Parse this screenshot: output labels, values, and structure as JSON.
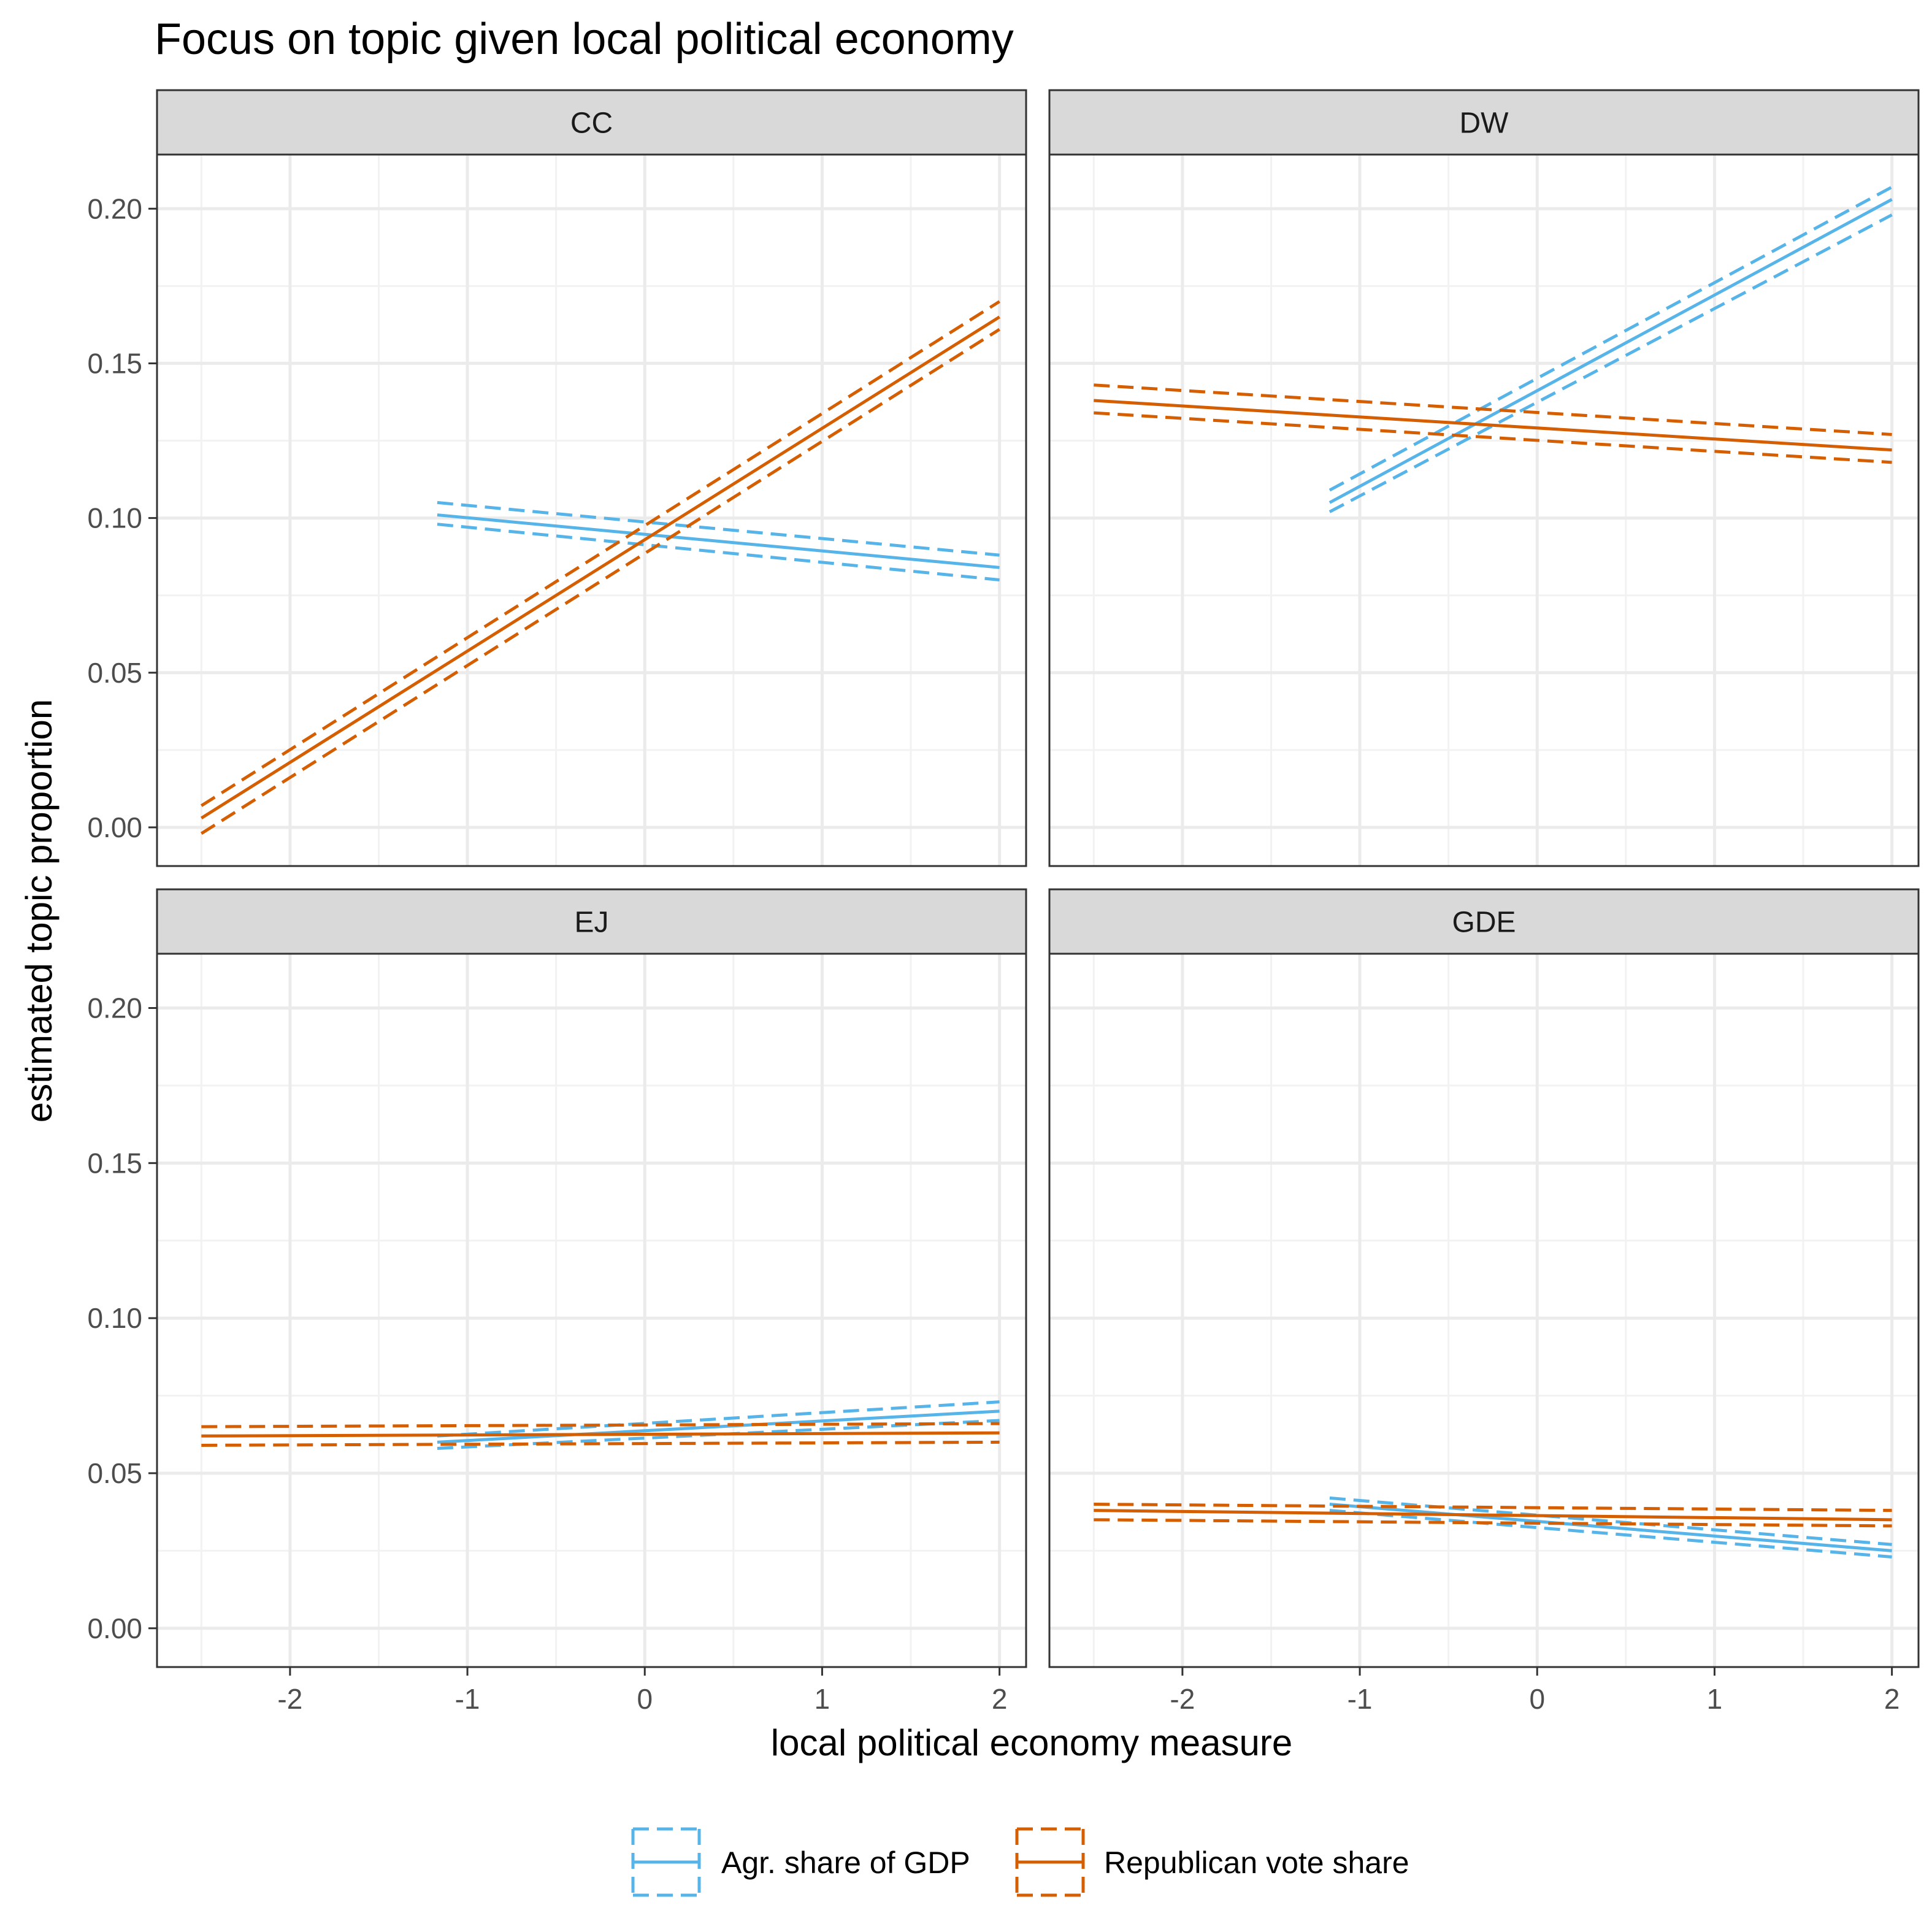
{
  "chart_data": {
    "type": "line",
    "title": "Focus on topic given local political economy",
    "xlabel": "local political economy measure",
    "ylabel": "estimated topic proportion",
    "xlim": [
      -2.75,
      2.15
    ],
    "ylim": [
      -0.0125,
      0.2175
    ],
    "x_ticks": [
      -2,
      -1,
      0,
      1,
      2
    ],
    "x_tick_labels": [
      "-2",
      "-1",
      "0",
      "1",
      "2"
    ],
    "y_ticks": [
      0,
      0.05,
      0.1,
      0.15,
      0.2
    ],
    "y_tick_labels": [
      "0.00",
      "0.05",
      "0.10",
      "0.15",
      "0.20"
    ],
    "grid": true,
    "legend_position": "bottom",
    "colors": {
      "agr": "#56B4E9",
      "rep": "#D55E00",
      "panel_border": "#333333",
      "strip_fill": "#d9d9d9",
      "grid_major": "#ebebeb",
      "grid_minor": "#f2f2f2"
    },
    "legend": [
      {
        "key": "agr",
        "label": "Agr. share of GDP"
      },
      {
        "key": "rep",
        "label": "Republican vote share"
      }
    ],
    "panels": [
      {
        "name": "CC",
        "series": [
          {
            "key": "agr",
            "x": [
              -1.17,
              2.0
            ],
            "fit": [
              0.101,
              0.084
            ],
            "lower": [
              0.098,
              0.08
            ],
            "upper": [
              0.105,
              0.088
            ]
          },
          {
            "key": "rep",
            "x": [
              -2.5,
              2.0
            ],
            "fit": [
              0.003,
              0.165
            ],
            "lower": [
              -0.002,
              0.161
            ],
            "upper": [
              0.007,
              0.17
            ]
          }
        ]
      },
      {
        "name": "DW",
        "series": [
          {
            "key": "agr",
            "x": [
              -1.17,
              2.0
            ],
            "fit": [
              0.105,
              0.203
            ],
            "lower": [
              0.102,
              0.198
            ],
            "upper": [
              0.109,
              0.207
            ]
          },
          {
            "key": "rep",
            "x": [
              -2.5,
              2.0
            ],
            "fit": [
              0.138,
              0.122
            ],
            "lower": [
              0.134,
              0.118
            ],
            "upper": [
              0.143,
              0.127
            ]
          }
        ]
      },
      {
        "name": "EJ",
        "series": [
          {
            "key": "agr",
            "x": [
              -1.17,
              2.0
            ],
            "fit": [
              0.06,
              0.07
            ],
            "lower": [
              0.058,
              0.067
            ],
            "upper": [
              0.062,
              0.073
            ]
          },
          {
            "key": "rep",
            "x": [
              -2.5,
              2.0
            ],
            "fit": [
              0.062,
              0.063
            ],
            "lower": [
              0.059,
              0.06
            ],
            "upper": [
              0.065,
              0.066
            ]
          }
        ]
      },
      {
        "name": "GDE",
        "series": [
          {
            "key": "agr",
            "x": [
              -1.17,
              2.0
            ],
            "fit": [
              0.04,
              0.025
            ],
            "lower": [
              0.038,
              0.023
            ],
            "upper": [
              0.042,
              0.027
            ]
          },
          {
            "key": "rep",
            "x": [
              -2.5,
              2.0
            ],
            "fit": [
              0.038,
              0.035
            ],
            "lower": [
              0.035,
              0.033
            ],
            "upper": [
              0.04,
              0.038
            ]
          }
        ]
      }
    ]
  }
}
